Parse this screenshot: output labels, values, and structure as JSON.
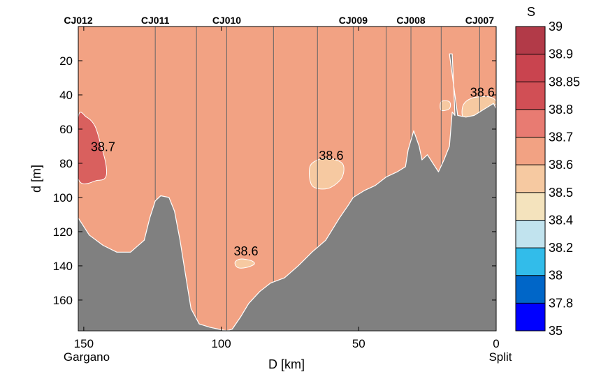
{
  "chart_data": {
    "type": "contour_section",
    "xlabel": "D [km]",
    "ylabel": "d [m]",
    "xlim": [
      152,
      0
    ],
    "ylim": [
      0,
      178
    ],
    "x_ticks": [
      150,
      100,
      50,
      0
    ],
    "y_ticks": [
      20,
      40,
      60,
      80,
      100,
      120,
      140,
      160
    ],
    "x_end_labels": {
      "left": "Gargano",
      "right": "Split"
    },
    "background_color": "#f2a283",
    "bottom_color": "#808080",
    "stations": [
      {
        "name": "CJ012",
        "x": 152,
        "labeled": true
      },
      {
        "name": "CJ011",
        "x": 124,
        "labeled": true
      },
      {
        "name": "",
        "x": 109,
        "labeled": false
      },
      {
        "name": "CJ010",
        "x": 98,
        "labeled": true
      },
      {
        "name": "",
        "x": 81,
        "labeled": false
      },
      {
        "name": "",
        "x": 65,
        "labeled": false
      },
      {
        "name": "CJ009",
        "x": 52,
        "labeled": true
      },
      {
        "name": "",
        "x": 40,
        "labeled": false
      },
      {
        "name": "CJ008",
        "x": 31,
        "labeled": true
      },
      {
        "name": "",
        "x": 20,
        "labeled": false
      },
      {
        "name": "CJ007",
        "x": 6,
        "labeled": true
      }
    ],
    "bottom_profile": [
      [
        152,
        112
      ],
      [
        148,
        122
      ],
      [
        143,
        128
      ],
      [
        138,
        132
      ],
      [
        133,
        132
      ],
      [
        128,
        125
      ],
      [
        126,
        112
      ],
      [
        124,
        102
      ],
      [
        122,
        99
      ],
      [
        119,
        100
      ],
      [
        117,
        108
      ],
      [
        115,
        125
      ],
      [
        113,
        145
      ],
      [
        111,
        165
      ],
      [
        108,
        174
      ],
      [
        104,
        176
      ],
      [
        98,
        178
      ],
      [
        96,
        177
      ],
      [
        93,
        170
      ],
      [
        90,
        162
      ],
      [
        86,
        155
      ],
      [
        82,
        150
      ],
      [
        77,
        147
      ],
      [
        72,
        140
      ],
      [
        67,
        132
      ],
      [
        62,
        125
      ],
      [
        57,
        112
      ],
      [
        54,
        105
      ],
      [
        52,
        100
      ],
      [
        48,
        96
      ],
      [
        44,
        93
      ],
      [
        40,
        88
      ],
      [
        36,
        85
      ],
      [
        33,
        82
      ],
      [
        32,
        72
      ],
      [
        30,
        61
      ],
      [
        28,
        70
      ],
      [
        27,
        78
      ],
      [
        25,
        75
      ],
      [
        23,
        80
      ],
      [
        21,
        85
      ],
      [
        19,
        78
      ],
      [
        17,
        70
      ],
      [
        16,
        50
      ],
      [
        15,
        52
      ],
      [
        16,
        16
      ],
      [
        17,
        16
      ],
      [
        14,
        52
      ],
      [
        11,
        53
      ],
      [
        8,
        52
      ],
      [
        5,
        49
      ],
      [
        3,
        47
      ],
      [
        1,
        45
      ],
      [
        0,
        48
      ]
    ],
    "patches": [
      {
        "value": "38.7",
        "color": "#d9605e",
        "label": true,
        "label_x": 143,
        "label_y": 71,
        "outline": [
          [
            152,
            53
          ],
          [
            149,
            53
          ],
          [
            146,
            58
          ],
          [
            144,
            68
          ],
          [
            142,
            80
          ],
          [
            142,
            88
          ],
          [
            145,
            90
          ],
          [
            152,
            89
          ]
        ]
      },
      {
        "value": "38.6",
        "color": "#f6c9a1",
        "label": true,
        "label_x": 60,
        "label_y": 76,
        "outline": [
          [
            67,
            80
          ],
          [
            62,
            77
          ],
          [
            56,
            80
          ],
          [
            56,
            88
          ],
          [
            60,
            94
          ],
          [
            64,
            95
          ],
          [
            67,
            93
          ],
          [
            68,
            86
          ]
        ]
      },
      {
        "value": "38.6",
        "color": "#f6c9a1",
        "label": true,
        "label_x": 91,
        "label_y": 132,
        "outline": [
          [
            95,
            138
          ],
          [
            93,
            136
          ],
          [
            89,
            137
          ],
          [
            88,
            139
          ],
          [
            91,
            141
          ],
          [
            94,
            141
          ]
        ]
      },
      {
        "value": "38.6",
        "color": "#f6c9a1",
        "label": true,
        "label_x": 5,
        "label_y": 39,
        "outline": [
          [
            12,
            46
          ],
          [
            9,
            42
          ],
          [
            4,
            41
          ],
          [
            1,
            42
          ],
          [
            0,
            45
          ],
          [
            3,
            48
          ],
          [
            8,
            52
          ],
          [
            12,
            53
          ]
        ]
      },
      {
        "value": "38.6",
        "color": "#f6c9a1",
        "label": false,
        "label_x": 0,
        "label_y": 0,
        "outline": [
          [
            20,
            44
          ],
          [
            17,
            44
          ],
          [
            17,
            48
          ],
          [
            20,
            49
          ]
        ]
      }
    ],
    "colorbar": {
      "title": "S",
      "levels": [
        "39",
        "38.9",
        "38.85",
        "38.8",
        "38.7",
        "38.6",
        "38.5",
        "38.4",
        "38.2",
        "38",
        "37.8",
        "35"
      ],
      "colors": [
        "#b23a48",
        "#c9444f",
        "#d14f55",
        "#e87b72",
        "#f2a283",
        "#f6c9a1",
        "#f4e3bd",
        "#c1e3ee",
        "#32bcea",
        "#0066c8",
        "#0000ff"
      ]
    }
  }
}
